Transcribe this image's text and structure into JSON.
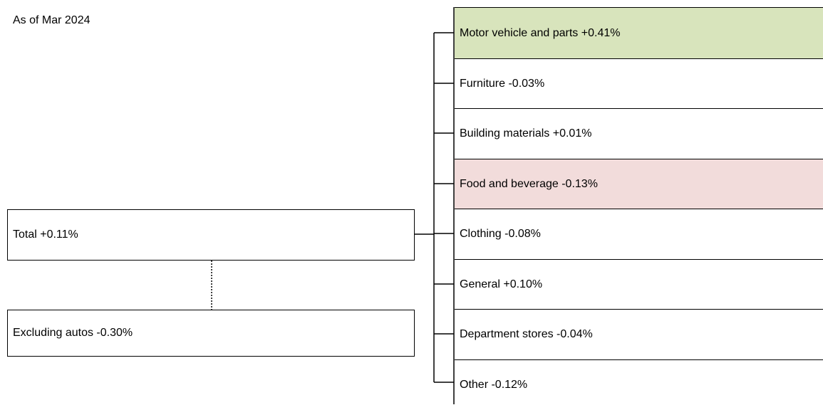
{
  "note": "As of Mar 2024",
  "totals": [
    {
      "label": "Total +0.11%"
    },
    {
      "label": "Excluding autos -0.30%"
    }
  ],
  "items": [
    {
      "label": "Motor vehicle and parts +0.41%"
    },
    {
      "label": "Furniture -0.03%"
    },
    {
      "label": "Building materials +0.01%"
    },
    {
      "label": "Food and beverage -0.13%"
    },
    {
      "label": "Clothing -0.08%"
    },
    {
      "label": "General +0.10%"
    },
    {
      "label": "Department stores -0.04%"
    },
    {
      "label": "Other -0.12%"
    }
  ]
}
